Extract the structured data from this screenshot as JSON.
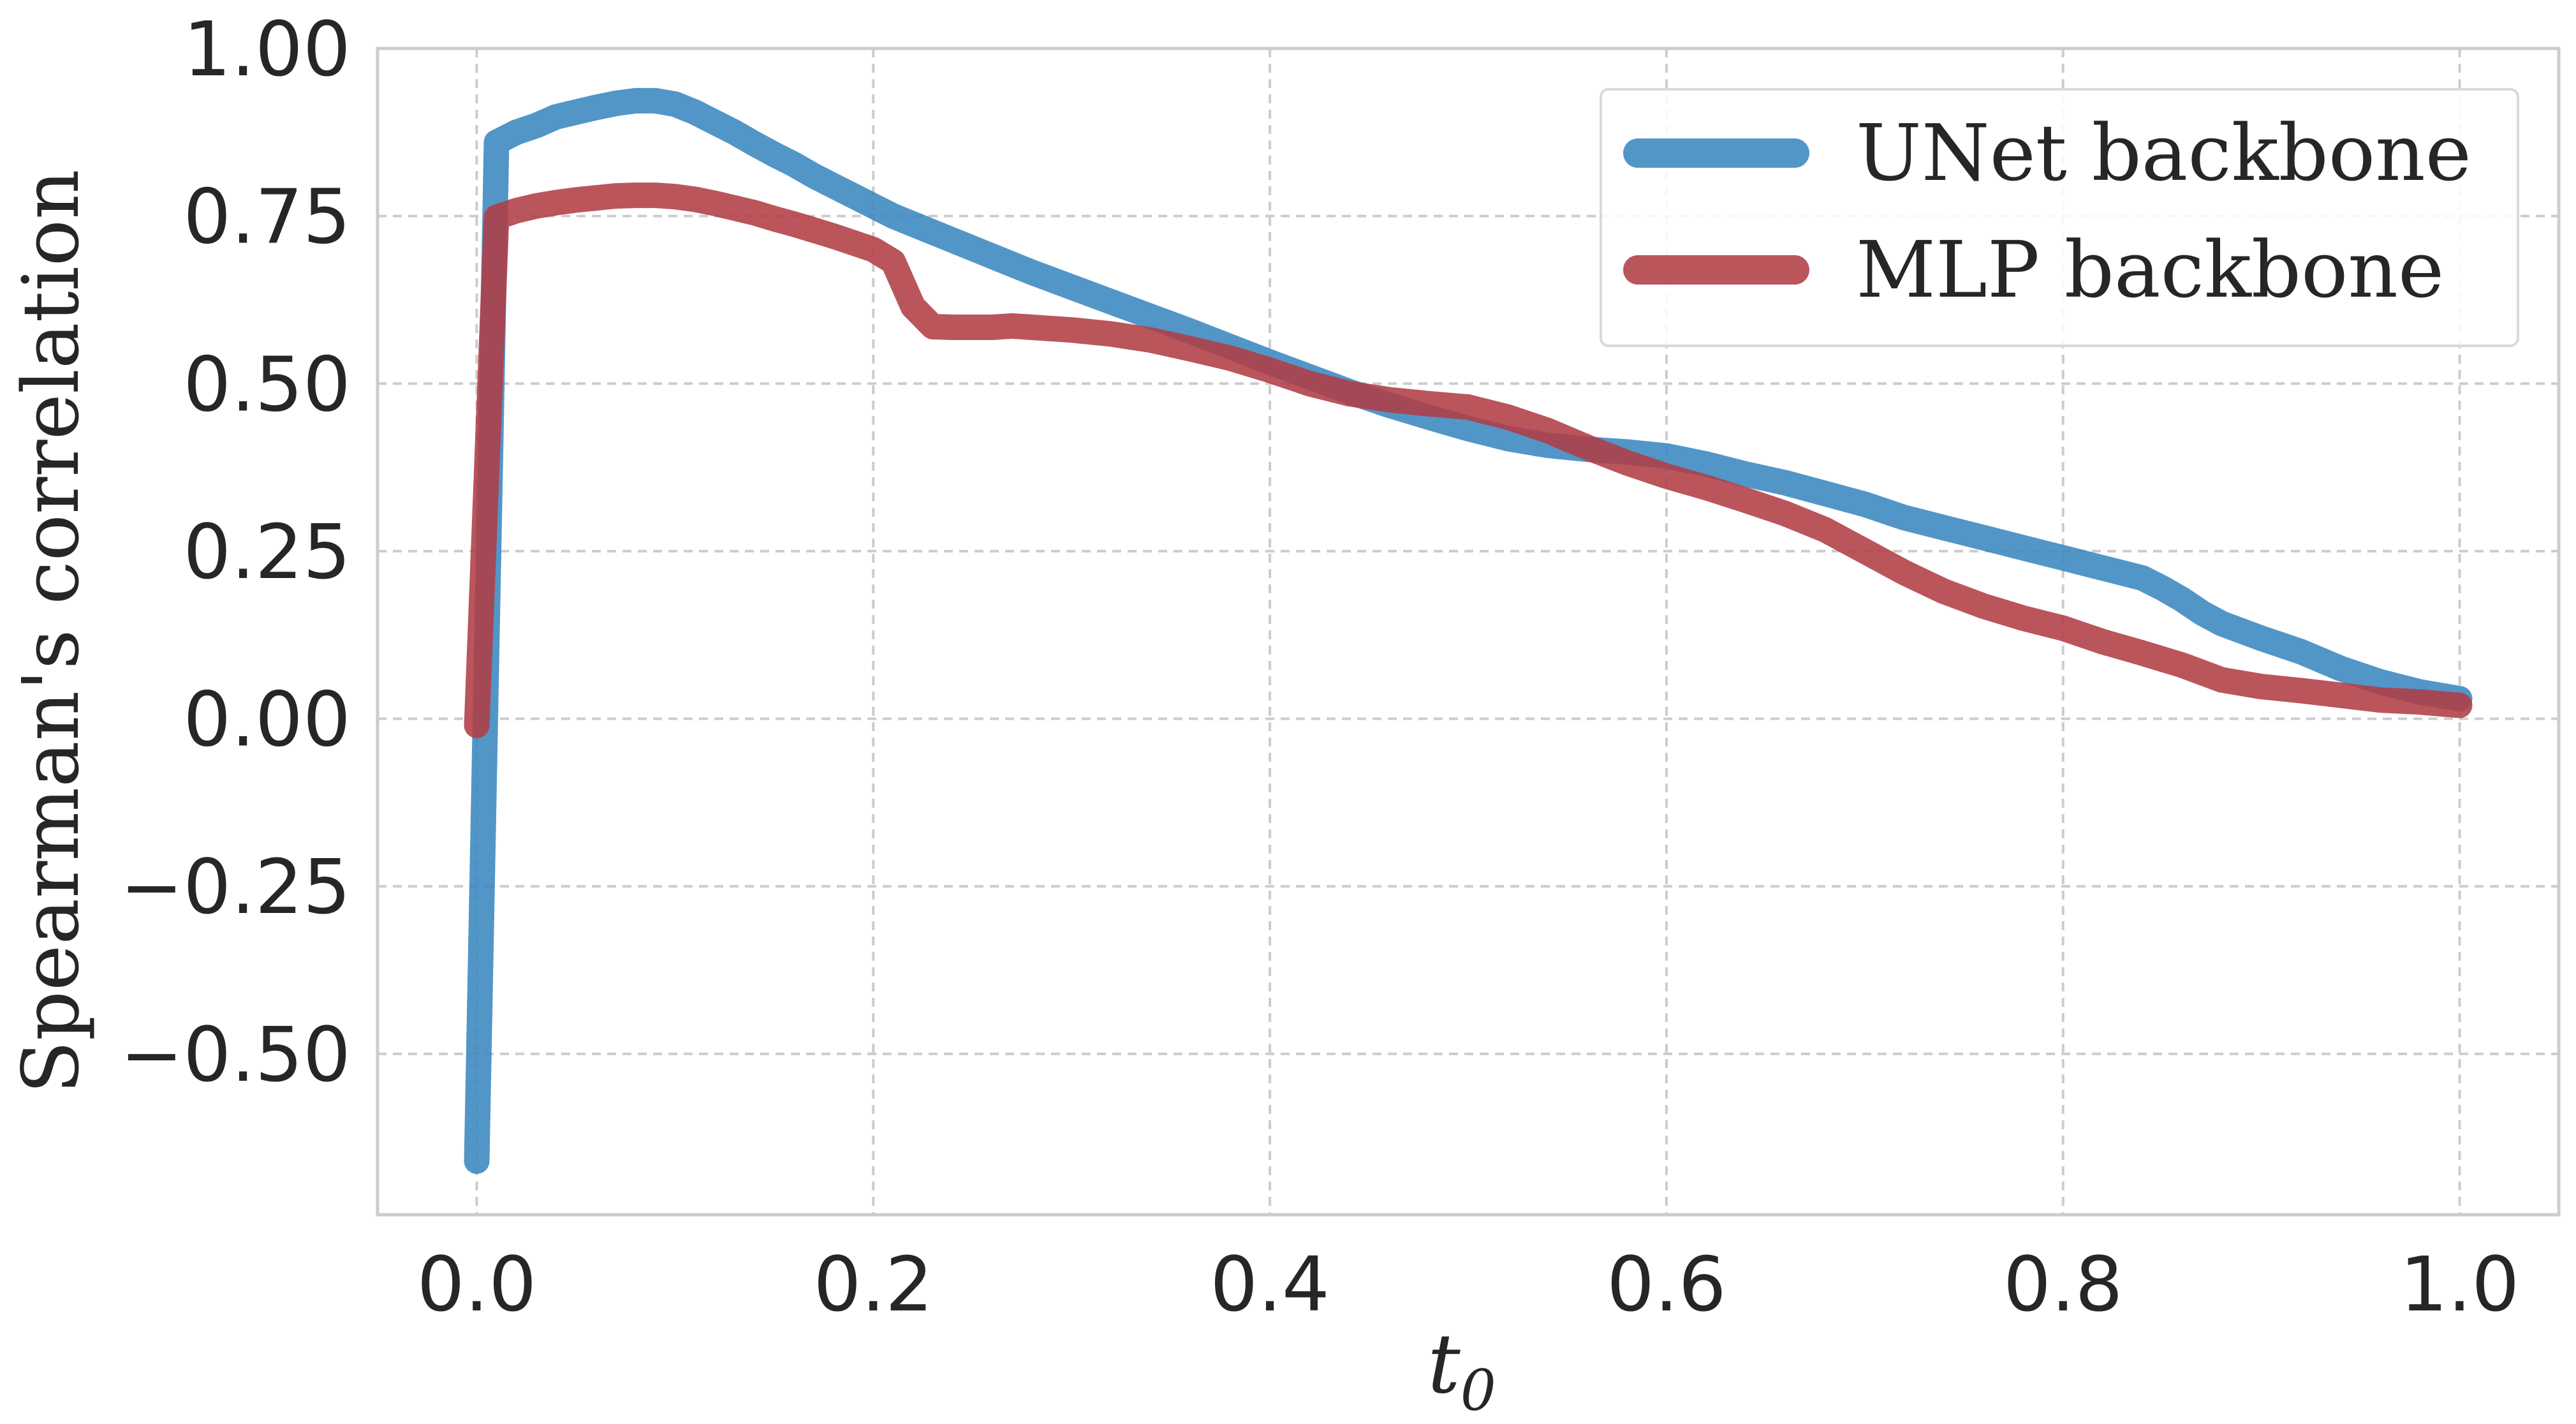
{
  "chart_data": {
    "type": "line",
    "title": "",
    "xlabel": "t",
    "xlabel_subscript": "0",
    "ylabel": "Spearman's correlation",
    "xlim": [
      -0.05,
      1.05
    ],
    "ylim": [
      -0.74,
      1.0
    ],
    "x_ticks": [
      0.0,
      0.2,
      0.4,
      0.6,
      0.8,
      1.0
    ],
    "x_tick_labels": [
      "0.0",
      "0.2",
      "0.4",
      "0.6",
      "0.8",
      "1.0"
    ],
    "y_ticks": [
      1.0,
      0.75,
      0.5,
      0.25,
      0.0,
      -0.25,
      -0.5
    ],
    "y_tick_labels": [
      "1.00",
      "0.75",
      "0.50",
      "0.25",
      "0.00",
      "−0.25",
      "−0.50"
    ],
    "grid": true,
    "legend_position": "top-right",
    "series": [
      {
        "name": "UNet backbone",
        "color": "#3a87c0",
        "x": [
          0.0,
          0.01,
          0.02,
          0.03,
          0.04,
          0.05,
          0.06,
          0.07,
          0.08,
          0.09,
          0.1,
          0.11,
          0.12,
          0.13,
          0.14,
          0.15,
          0.16,
          0.17,
          0.18,
          0.19,
          0.2,
          0.21,
          0.22,
          0.23,
          0.24,
          0.25,
          0.26,
          0.27,
          0.28,
          0.29,
          0.3,
          0.32,
          0.34,
          0.36,
          0.38,
          0.4,
          0.42,
          0.44,
          0.46,
          0.48,
          0.5,
          0.52,
          0.54,
          0.56,
          0.58,
          0.6,
          0.62,
          0.64,
          0.66,
          0.68,
          0.7,
          0.72,
          0.74,
          0.76,
          0.78,
          0.8,
          0.82,
          0.84,
          0.85,
          0.86,
          0.87,
          0.88,
          0.9,
          0.92,
          0.94,
          0.96,
          0.98,
          1.0
        ],
        "y": [
          -0.66,
          0.86,
          0.875,
          0.885,
          0.898,
          0.905,
          0.912,
          0.918,
          0.922,
          0.922,
          0.917,
          0.905,
          0.89,
          0.875,
          0.858,
          0.842,
          0.827,
          0.81,
          0.795,
          0.78,
          0.765,
          0.75,
          0.738,
          0.726,
          0.714,
          0.702,
          0.69,
          0.678,
          0.666,
          0.655,
          0.644,
          0.622,
          0.6,
          0.578,
          0.555,
          0.532,
          0.51,
          0.488,
          0.468,
          0.45,
          0.433,
          0.418,
          0.408,
          0.402,
          0.398,
          0.392,
          0.38,
          0.365,
          0.352,
          0.336,
          0.32,
          0.3,
          0.285,
          0.27,
          0.255,
          0.24,
          0.225,
          0.21,
          0.195,
          0.178,
          0.158,
          0.142,
          0.12,
          0.1,
          0.075,
          0.055,
          0.04,
          0.03
        ]
      },
      {
        "name": "MLP backbone",
        "color": "#b03d46",
        "x": [
          0.0,
          0.01,
          0.02,
          0.03,
          0.04,
          0.05,
          0.06,
          0.07,
          0.08,
          0.09,
          0.1,
          0.11,
          0.12,
          0.13,
          0.14,
          0.15,
          0.16,
          0.17,
          0.18,
          0.19,
          0.2,
          0.21,
          0.22,
          0.23,
          0.24,
          0.26,
          0.27,
          0.28,
          0.3,
          0.32,
          0.34,
          0.36,
          0.38,
          0.4,
          0.42,
          0.44,
          0.46,
          0.48,
          0.5,
          0.52,
          0.54,
          0.56,
          0.58,
          0.6,
          0.62,
          0.64,
          0.66,
          0.68,
          0.7,
          0.72,
          0.74,
          0.76,
          0.78,
          0.8,
          0.82,
          0.84,
          0.86,
          0.88,
          0.9,
          0.92,
          0.94,
          0.96,
          0.98,
          1.0
        ],
        "y": [
          -0.01,
          0.748,
          0.758,
          0.765,
          0.77,
          0.774,
          0.777,
          0.78,
          0.781,
          0.781,
          0.779,
          0.775,
          0.769,
          0.762,
          0.755,
          0.746,
          0.738,
          0.729,
          0.72,
          0.71,
          0.7,
          0.682,
          0.615,
          0.585,
          0.584,
          0.584,
          0.586,
          0.584,
          0.58,
          0.574,
          0.565,
          0.552,
          0.538,
          0.52,
          0.5,
          0.485,
          0.476,
          0.47,
          0.465,
          0.45,
          0.43,
          0.405,
          0.382,
          0.362,
          0.345,
          0.326,
          0.306,
          0.282,
          0.25,
          0.218,
          0.19,
          0.168,
          0.15,
          0.135,
          0.115,
          0.098,
          0.08,
          0.058,
          0.048,
          0.042,
          0.035,
          0.028,
          0.025,
          0.02
        ]
      }
    ]
  }
}
